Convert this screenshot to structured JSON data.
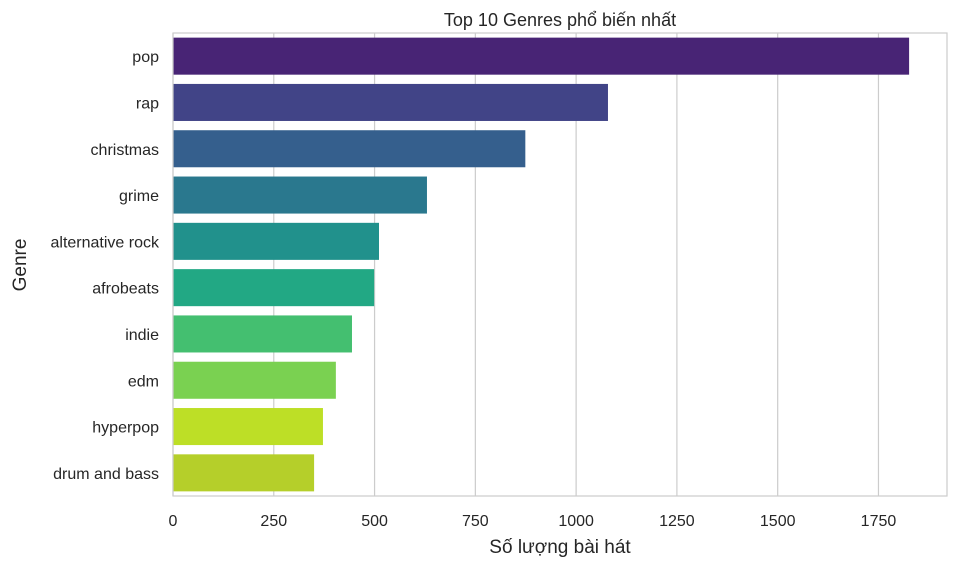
{
  "chart_data": {
    "type": "bar",
    "orientation": "horizontal",
    "title": "Top 10 Genres phổ biến nhất",
    "xlabel": "Số lượng bài hát",
    "ylabel": "Genre",
    "categories": [
      "pop",
      "rap",
      "christmas",
      "grime",
      "alternative rock",
      "afrobeats",
      "indie",
      "edm",
      "hyperpop",
      "drum and bass"
    ],
    "values": [
      1826,
      1079,
      874,
      630,
      511,
      499,
      444,
      404,
      372,
      350
    ],
    "xlim": [
      0,
      1920
    ],
    "xticks": [
      0,
      250,
      500,
      750,
      1000,
      1250,
      1500,
      1750
    ],
    "grid": true,
    "colors": [
      "#482475",
      "#414487",
      "#355f8d",
      "#2a788e",
      "#21918c",
      "#22a884",
      "#44bf70",
      "#7ad151",
      "#bddf26",
      "#b5cf2a"
    ],
    "palette": "viridis"
  }
}
